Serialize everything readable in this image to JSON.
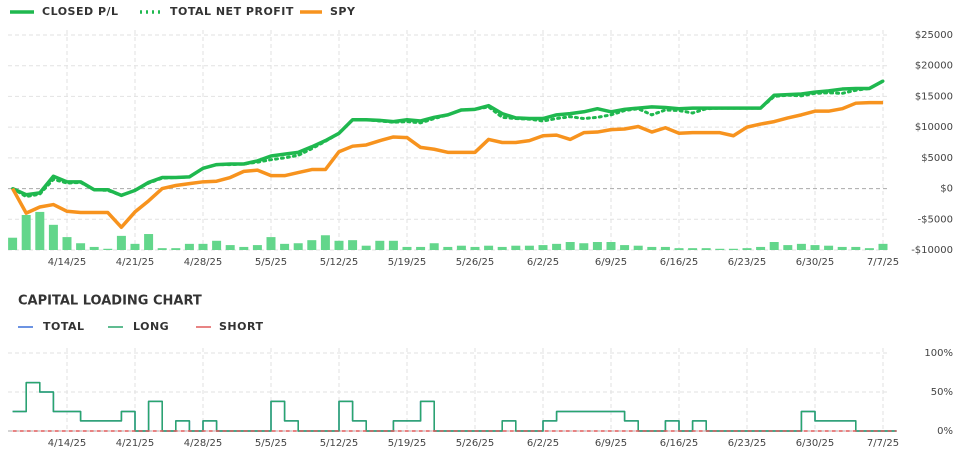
{
  "chart_data": [
    {
      "type": "line",
      "categories": [
        null,
        null,
        null,
        null,
        "4/14/25",
        null,
        null,
        null,
        null,
        "4/21/25",
        null,
        null,
        null,
        null,
        "4/28/25",
        null,
        null,
        null,
        null,
        "5/5/25",
        null,
        null,
        null,
        null,
        "5/12/25",
        null,
        null,
        null,
        null,
        "5/19/25",
        null,
        null,
        null,
        null,
        "5/26/25",
        null,
        null,
        null,
        null,
        "6/2/25",
        null,
        null,
        null,
        null,
        "6/9/25",
        null,
        null,
        null,
        null,
        "6/16/25",
        null,
        null,
        null,
        null,
        "6/23/25",
        null,
        null,
        null,
        null,
        "6/30/25",
        null,
        null,
        null,
        null,
        "7/7/25"
      ],
      "series": [
        {
          "name": "CLOSED P/L",
          "color": "#1fb84f",
          "style": "solid",
          "values": [
            0,
            -1000,
            -700,
            2000,
            1100,
            1100,
            -200,
            -200,
            -1100,
            -300,
            1000,
            1800,
            1800,
            1900,
            3300,
            3900,
            4000,
            4000,
            4500,
            5300,
            5600,
            5900,
            6800,
            7800,
            9000,
            11200,
            11200,
            11100,
            10900,
            11200,
            11000,
            11600,
            12000,
            12800,
            12900,
            13500,
            12200,
            11500,
            11400,
            11400,
            12000,
            12200,
            12500,
            13000,
            12500,
            12900,
            13100,
            13300,
            13200,
            13000,
            13100,
            13100,
            13100,
            13100,
            13100,
            13100,
            15200,
            15300,
            15400,
            15700,
            15900,
            16200,
            16300,
            16300,
            17500
          ]
        },
        {
          "name": "TOTAL NET PROFIT",
          "color": "#1fb84f",
          "style": "dotted",
          "values": [
            0,
            -1300,
            -900,
            1500,
            900,
            1000,
            -200,
            -300,
            -1100,
            -300,
            900,
            1700,
            1800,
            1900,
            3300,
            3900,
            3900,
            4000,
            4300,
            4700,
            5000,
            5400,
            6500,
            7700,
            9000,
            11200,
            11200,
            11000,
            10800,
            10900,
            10700,
            11400,
            12000,
            12800,
            12900,
            13300,
            11600,
            11400,
            11300,
            11000,
            11400,
            11700,
            11400,
            11600,
            12000,
            12700,
            13000,
            12000,
            12800,
            12700,
            12300,
            13000,
            13100,
            13100,
            13100,
            13100,
            15000,
            15200,
            15100,
            15500,
            15600,
            15500,
            16000,
            16300,
            17500
          ]
        },
        {
          "name": "SPY",
          "color": "#f7931e",
          "style": "solid",
          "values": [
            0,
            -4000,
            -3000,
            -2600,
            -3700,
            -3900,
            -3900,
            -3900,
            -6300,
            -3800,
            -2000,
            0,
            500,
            800,
            1100,
            1200,
            1800,
            2800,
            3000,
            2100,
            2100,
            2600,
            3100,
            3100,
            6000,
            6900,
            7100,
            7800,
            8400,
            8300,
            6700,
            6400,
            5900,
            5900,
            5900,
            8000,
            7500,
            7500,
            7800,
            8600,
            8700,
            8000,
            9100,
            9200,
            9600,
            9700,
            10100,
            9200,
            9900,
            9000,
            9100,
            9100,
            9100,
            8600,
            10000,
            10500,
            10900,
            11500,
            12000,
            12600,
            12600,
            13000,
            13900,
            14000,
            14000
          ]
        }
      ],
      "bars": {
        "color": "#63d68b",
        "values": [
          2000,
          5700,
          6200,
          4100,
          2100,
          1100,
          500,
          200,
          2300,
          1000,
          2600,
          300,
          300,
          1000,
          1000,
          1500,
          800,
          500,
          800,
          2100,
          1000,
          1100,
          1600,
          2400,
          1500,
          1600,
          700,
          1500,
          1500,
          500,
          500,
          1100,
          500,
          700,
          500,
          700,
          500,
          700,
          700,
          800,
          1000,
          1300,
          1100,
          1300,
          1300,
          800,
          700,
          500,
          500,
          300,
          300,
          300,
          200,
          200,
          300,
          500,
          1300,
          800,
          1000,
          800,
          700,
          500,
          500,
          300,
          1000
        ]
      },
      "ylim": [
        -10000,
        25000
      ],
      "yticks": [
        {
          "value": 25000,
          "label": "$25000"
        },
        {
          "value": 20000,
          "label": "$20000"
        },
        {
          "value": 15000,
          "label": "$15000"
        },
        {
          "value": 10000,
          "label": "$10000"
        },
        {
          "value": 5000,
          "label": "$5000"
        },
        {
          "value": 0,
          "label": "$0"
        },
        {
          "value": -5000,
          "label": "-$5000"
        },
        {
          "value": -10000,
          "label": "-$10000"
        }
      ],
      "grid": true
    },
    {
      "type": "step",
      "title": "CAPITAL LOADING CHART",
      "categories": [
        null,
        null,
        null,
        null,
        "4/14/25",
        null,
        null,
        null,
        null,
        "4/21/25",
        null,
        null,
        null,
        null,
        "4/28/25",
        null,
        null,
        null,
        null,
        "5/5/25",
        null,
        null,
        null,
        null,
        "5/12/25",
        null,
        null,
        null,
        null,
        "5/19/25",
        null,
        null,
        null,
        null,
        "5/26/25",
        null,
        null,
        null,
        null,
        "6/2/25",
        null,
        null,
        null,
        null,
        "6/9/25",
        null,
        null,
        null,
        null,
        "6/16/25",
        null,
        null,
        null,
        null,
        "6/23/25",
        null,
        null,
        null,
        null,
        "6/30/25",
        null,
        null,
        null,
        null,
        "7/7/25"
      ],
      "series": [
        {
          "name": "TOTAL",
          "color": "#3a6fd8",
          "style": "solid",
          "values": [
            25,
            62,
            50,
            25,
            25,
            13,
            13,
            13,
            25,
            0,
            38,
            0,
            13,
            0,
            13,
            0,
            0,
            0,
            0,
            38,
            13,
            0,
            0,
            0,
            38,
            13,
            0,
            0,
            13,
            13,
            38,
            0,
            0,
            0,
            0,
            0,
            13,
            0,
            0,
            13,
            25,
            25,
            25,
            25,
            25,
            13,
            0,
            0,
            13,
            0,
            13,
            0,
            0,
            0,
            0,
            0,
            0,
            0,
            25,
            13,
            13,
            13,
            0,
            0,
            0
          ]
        },
        {
          "name": "LONG",
          "color": "#2aa56c",
          "style": "solid",
          "values": [
            25,
            62,
            50,
            25,
            25,
            13,
            13,
            13,
            25,
            0,
            38,
            0,
            13,
            0,
            13,
            0,
            0,
            0,
            0,
            38,
            13,
            0,
            0,
            0,
            38,
            13,
            0,
            0,
            13,
            13,
            38,
            0,
            0,
            0,
            0,
            0,
            13,
            0,
            0,
            13,
            25,
            25,
            25,
            25,
            25,
            13,
            0,
            0,
            13,
            0,
            13,
            0,
            0,
            0,
            0,
            0,
            0,
            0,
            25,
            13,
            13,
            13,
            0,
            0,
            0
          ]
        },
        {
          "name": "SHORT",
          "color": "#e05a5a",
          "style": "dashed",
          "values": [
            0,
            0,
            0,
            0,
            0,
            0,
            0,
            0,
            0,
            0,
            0,
            0,
            0,
            0,
            0,
            0,
            0,
            0,
            0,
            0,
            0,
            0,
            0,
            0,
            0,
            0,
            0,
            0,
            0,
            0,
            0,
            0,
            0,
            0,
            0,
            0,
            0,
            0,
            0,
            0,
            0,
            0,
            0,
            0,
            0,
            0,
            0,
            0,
            0,
            0,
            0,
            0,
            0,
            0,
            0,
            0,
            0,
            0,
            0,
            0,
            0,
            0,
            0,
            0,
            0
          ]
        }
      ],
      "ylim": [
        0,
        100
      ],
      "yticks": [
        {
          "value": 100,
          "label": "100%"
        },
        {
          "value": 50,
          "label": "50%"
        },
        {
          "value": 0,
          "label": "0%"
        }
      ],
      "grid": true
    }
  ]
}
